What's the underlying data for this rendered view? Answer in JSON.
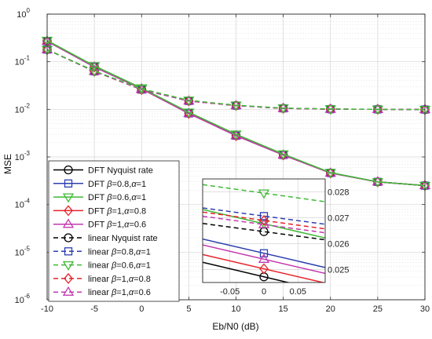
{
  "chart_data": {
    "type": "line",
    "xlabel": "Eb/N0 (dB)",
    "ylabel": "MSE",
    "yscale": "log",
    "xlim": [
      -10,
      30
    ],
    "ylim": [
      1e-06,
      1
    ],
    "grid": true,
    "legend_position": "bottom-left",
    "x": [
      -10,
      -5,
      0,
      5,
      10,
      15,
      20,
      25,
      30
    ],
    "xticks": [
      "-10",
      "-5",
      "0",
      "5",
      "10",
      "15",
      "20",
      "25",
      "30"
    ],
    "yticks": [
      {
        "base": "10",
        "exp": "-6"
      },
      {
        "base": "10",
        "exp": "-5"
      },
      {
        "base": "10",
        "exp": "-4"
      },
      {
        "base": "10",
        "exp": "-3"
      },
      {
        "base": "10",
        "exp": "-2"
      },
      {
        "base": "10",
        "exp": "-1"
      },
      {
        "base": "10",
        "exp": "0"
      }
    ],
    "series": [
      {
        "name": "DFT Nyquist rate",
        "parts": [
          {
            "t": "DFT Nyquist rate"
          }
        ],
        "color": "#000000",
        "dash": "solid",
        "marker": "circle",
        "values": [
          0.27,
          0.078,
          0.027,
          0.0083,
          0.0028,
          0.0011,
          0.00046,
          0.0003,
          0.00025
        ]
      },
      {
        "name": "DFT β=0.8,α=1",
        "parts": [
          {
            "t": "DFT "
          },
          {
            "t": "β",
            "i": true
          },
          {
            "t": "=0.8,"
          },
          {
            "t": "α",
            "i": true
          },
          {
            "t": "=1"
          }
        ],
        "color": "#2c3fb0",
        "dash": "solid",
        "marker": "square",
        "values": [
          0.27,
          0.078,
          0.027,
          0.0082,
          0.0028,
          0.0011,
          0.00046,
          0.0003,
          0.00025
        ]
      },
      {
        "name": "DFT β=0.6,α=1",
        "parts": [
          {
            "t": "DFT "
          },
          {
            "t": "β",
            "i": true
          },
          {
            "t": "=0.6,"
          },
          {
            "t": "α",
            "i": true
          },
          {
            "t": "=1"
          }
        ],
        "color": "#3fb936",
        "dash": "solid",
        "marker": "triangle-down",
        "values": [
          0.28,
          0.082,
          0.028,
          0.0087,
          0.003,
          0.00115,
          0.00047,
          0.0003,
          0.00025
        ]
      },
      {
        "name": "DFT β=1,α=0.8",
        "parts": [
          {
            "t": "DFT "
          },
          {
            "t": "β",
            "i": true
          },
          {
            "t": "=1,"
          },
          {
            "t": "α",
            "i": true
          },
          {
            "t": "=0.8"
          }
        ],
        "color": "#e8222a",
        "dash": "solid",
        "marker": "diamond",
        "values": [
          0.27,
          0.078,
          0.027,
          0.0082,
          0.0028,
          0.0011,
          0.00046,
          0.0003,
          0.00025
        ]
      },
      {
        "name": "DFT β=1,α=0.6",
        "parts": [
          {
            "t": "DFT "
          },
          {
            "t": "β",
            "i": true
          },
          {
            "t": "=1,"
          },
          {
            "t": "α",
            "i": true
          },
          {
            "t": "=0.6"
          }
        ],
        "color": "#c338b0",
        "dash": "solid",
        "marker": "triangle-up",
        "values": [
          0.27,
          0.078,
          0.027,
          0.0082,
          0.0028,
          0.0011,
          0.00046,
          0.0003,
          0.00025
        ]
      },
      {
        "name": "linear Nyquist rate",
        "parts": [
          {
            "t": "linear Nyquist rate"
          }
        ],
        "color": "#000000",
        "dash": "dashed",
        "marker": "circle",
        "values": [
          0.18,
          0.063,
          0.026,
          0.015,
          0.012,
          0.0105,
          0.0101,
          0.01,
          0.0099
        ]
      },
      {
        "name": "linear β=0.8,α=1",
        "parts": [
          {
            "t": "linear "
          },
          {
            "t": "β",
            "i": true
          },
          {
            "t": "=0.8,"
          },
          {
            "t": "α",
            "i": true
          },
          {
            "t": "=1"
          }
        ],
        "color": "#2c3fb0",
        "dash": "dashed",
        "marker": "square",
        "values": [
          0.18,
          0.063,
          0.026,
          0.015,
          0.012,
          0.0105,
          0.0101,
          0.01,
          0.0099
        ]
      },
      {
        "name": "linear β=0.6,α=1",
        "parts": [
          {
            "t": "linear "
          },
          {
            "t": "β",
            "i": true
          },
          {
            "t": "=0.6,"
          },
          {
            "t": "α",
            "i": true
          },
          {
            "t": "=1"
          }
        ],
        "color": "#3fb936",
        "dash": "dashed",
        "marker": "triangle-down",
        "values": [
          0.18,
          0.064,
          0.027,
          0.0155,
          0.0122,
          0.0106,
          0.0102,
          0.01,
          0.0099
        ]
      },
      {
        "name": "linear β=1,α=0.8",
        "parts": [
          {
            "t": "linear "
          },
          {
            "t": "β",
            "i": true
          },
          {
            "t": "=1,"
          },
          {
            "t": "α",
            "i": true
          },
          {
            "t": "=0.8"
          }
        ],
        "color": "#e8222a",
        "dash": "dashed",
        "marker": "diamond",
        "values": [
          0.18,
          0.063,
          0.026,
          0.015,
          0.012,
          0.0105,
          0.0101,
          0.01,
          0.0099
        ]
      },
      {
        "name": "linear β=1,α=0.6",
        "parts": [
          {
            "t": "linear "
          },
          {
            "t": "β",
            "i": true
          },
          {
            "t": "=1,"
          },
          {
            "t": "α",
            "i": true
          },
          {
            "t": "=0.6"
          }
        ],
        "color": "#c338b0",
        "dash": "dashed",
        "marker": "triangle-up",
        "values": [
          0.18,
          0.063,
          0.026,
          0.015,
          0.012,
          0.0105,
          0.0101,
          0.01,
          0.0099
        ]
      }
    ],
    "inset": {
      "xlim": [
        -0.09,
        0.09
      ],
      "ylim": [
        0.0245,
        0.0285
      ],
      "xticks": [
        {
          "v": -0.05,
          "label": "-0.05"
        },
        {
          "v": 0,
          "label": "0"
        },
        {
          "v": 0.05,
          "label": "0.05"
        }
      ],
      "yticks": [
        {
          "v": 0.025,
          "label": "0.025"
        },
        {
          "v": 0.026,
          "label": "0.026"
        },
        {
          "v": 0.027,
          "label": "0.027"
        },
        {
          "v": 0.028,
          "label": "0.028"
        }
      ],
      "lines": [
        {
          "series": 0,
          "y_left": 0.02528,
          "y_right": 0.02416
        },
        {
          "series": 1,
          "y_left": 0.02618,
          "y_right": 0.02508
        },
        {
          "series": 2,
          "y_left": 0.02732,
          "y_right": 0.02622
        },
        {
          "series": 3,
          "y_left": 0.02558,
          "y_right": 0.02448
        },
        {
          "series": 4,
          "y_left": 0.02595,
          "y_right": 0.02485
        },
        {
          "series": 5,
          "y_left": 0.02678,
          "y_right": 0.02615
        },
        {
          "series": 6,
          "y_left": 0.02738,
          "y_right": 0.02675
        },
        {
          "series": 7,
          "y_left": 0.02828,
          "y_right": 0.02762
        },
        {
          "series": 8,
          "y_left": 0.02722,
          "y_right": 0.02657
        },
        {
          "series": 9,
          "y_left": 0.02706,
          "y_right": 0.02642
        }
      ]
    }
  }
}
